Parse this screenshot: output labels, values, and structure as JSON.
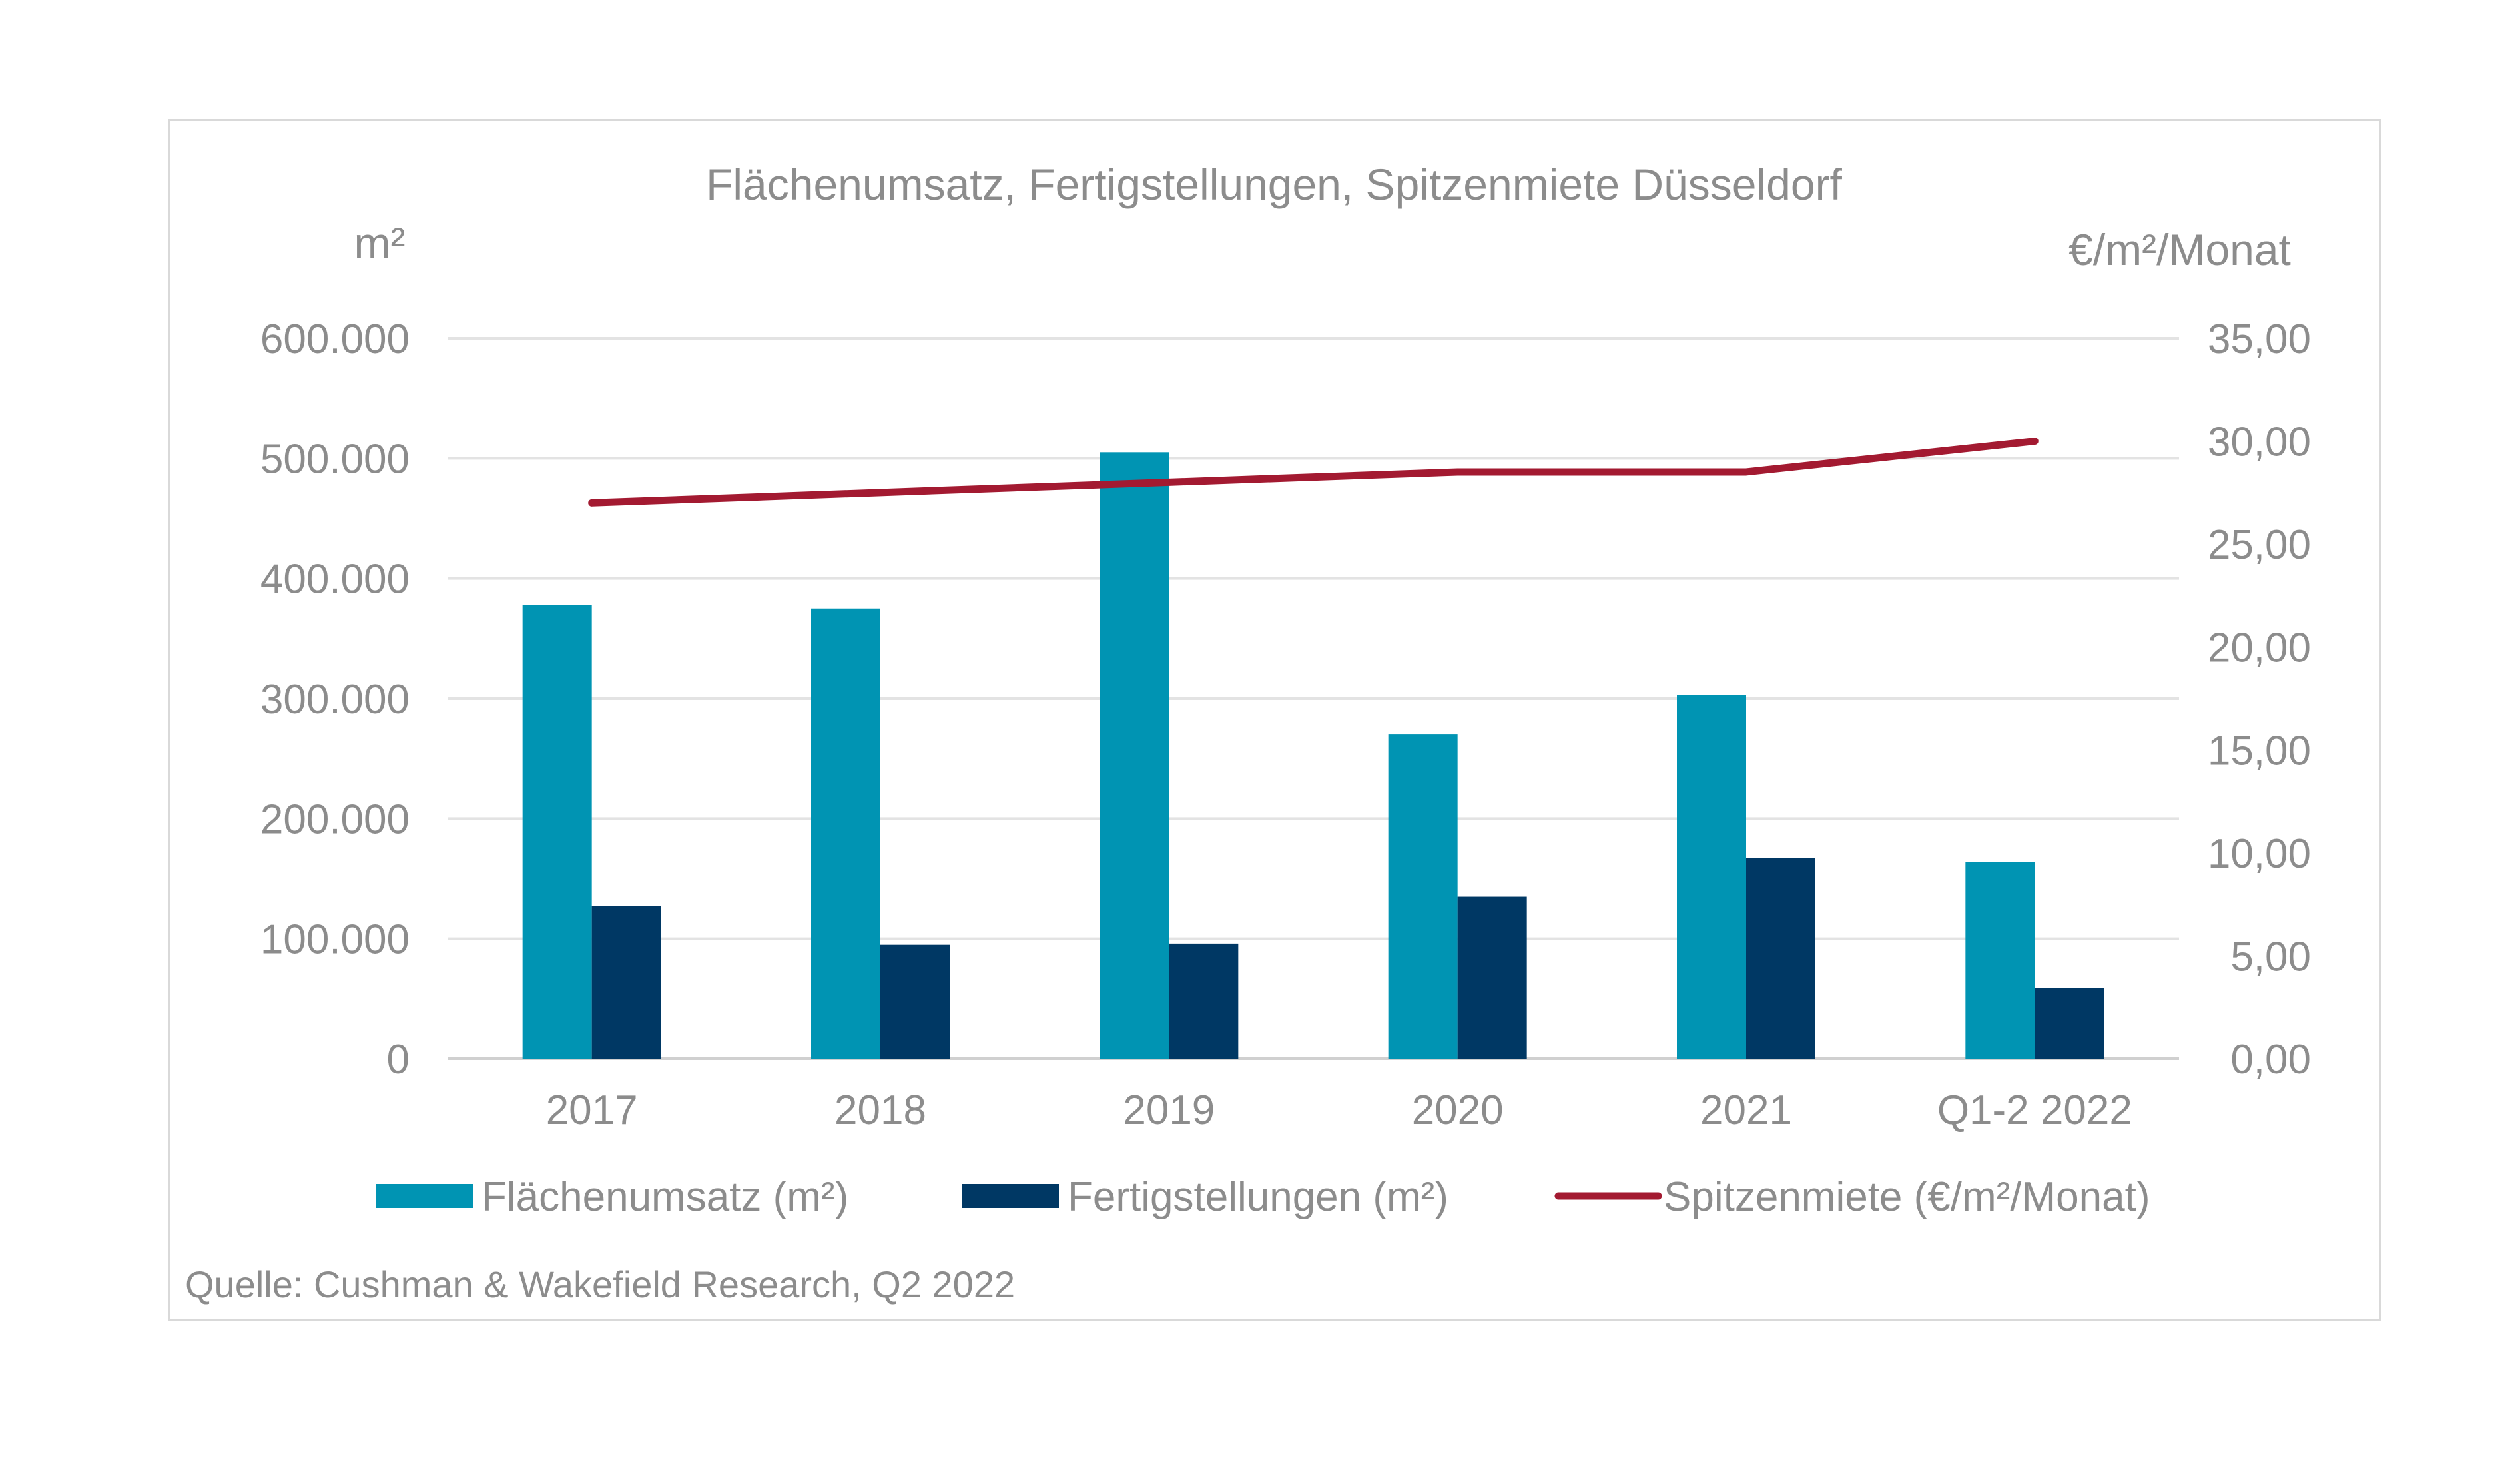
{
  "chart_data": {
    "type": "bar",
    "title": "Flächenumsatz, Fertigstellungen, Spitzenmiete Düsseldorf",
    "y_left_label": "m²",
    "y_right_label": "€/m²/Monat",
    "categories": [
      "2017",
      "2018",
      "2019",
      "2020",
      "2021",
      "Q1-2 2022"
    ],
    "y_left_ticks": [
      "0",
      "100.000",
      "200.000",
      "300.000",
      "400.000",
      "500.000",
      "600.000"
    ],
    "y_right_ticks": [
      "0,00",
      "5,00",
      "10,00",
      "15,00",
      "20,00",
      "25,00",
      "30,00",
      "35,00"
    ],
    "ylim_left": [
      0,
      600000
    ],
    "ylim_right": [
      0,
      35
    ],
    "grid": true,
    "legend_position": "bottom",
    "series": [
      {
        "name": "Flächenumsatz (m²)",
        "type": "bar",
        "axis": "left",
        "color": "#0094b3",
        "values": [
          378000,
          375000,
          505000,
          270000,
          303000,
          164000
        ]
      },
      {
        "name": "Fertigstellungen (m²)",
        "type": "bar",
        "axis": "left",
        "color": "#003864",
        "values": [
          127000,
          95000,
          96000,
          135000,
          167000,
          59000
        ]
      },
      {
        "name": "Spitzenmiete (€/m²/Monat)",
        "type": "line",
        "axis": "right",
        "color": "#a31a31",
        "values": [
          27.0,
          27.5,
          28.0,
          28.5,
          28.5,
          30.0
        ]
      }
    ],
    "source": "Quelle: Cushman & Wakefield Research, Q2 2022"
  }
}
